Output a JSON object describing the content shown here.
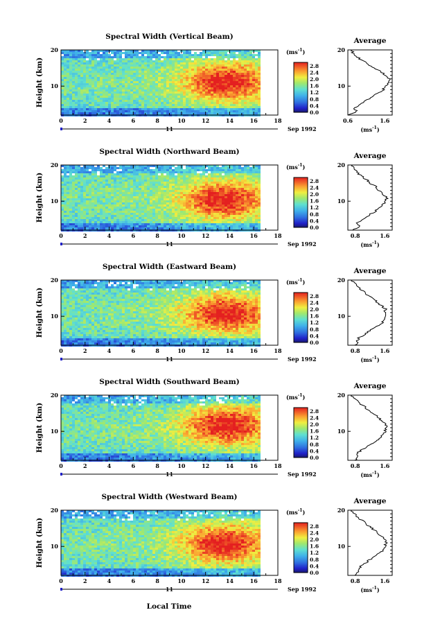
{
  "figure": {
    "xlabel": "Local Time"
  },
  "chart_data": [
    {
      "type": "heatmap",
      "title": "Spectral Width (Vertical Beam)",
      "ylabel": "Height (km)",
      "x_ticks": [
        "0",
        "2",
        "4",
        "6",
        "8",
        "10",
        "12",
        "14",
        "16",
        "18"
      ],
      "y_ticks": [
        "20",
        "10"
      ],
      "xlim": [
        0,
        18
      ],
      "ylim": [
        2,
        20
      ],
      "data_end_x": 16.5,
      "date_label": "11",
      "date_suffix": "Sep 1992",
      "colorbar": {
        "unit_base": "(ms",
        "unit_exp": "-1",
        "unit_close": ")",
        "tick_labels": [
          "2.8",
          "2.4",
          "2.0",
          "1.6",
          "1.2",
          "0.8",
          "0.4",
          "0.0"
        ],
        "range": [
          0,
          3.0
        ]
      },
      "peak": {
        "x": 13.5,
        "y": 11.5
      },
      "profile": {
        "title": "Average",
        "xlim": [
          0.6,
          1.8
        ],
        "x_ticks": [
          "0.6",
          "1.6"
        ],
        "y_ticks": [
          "20",
          "10"
        ],
        "xlabel_base": "(ms",
        "xlabel_exp": "-1",
        "xlabel_close": ")",
        "points": [
          [
            0.62,
            2
          ],
          [
            0.85,
            3
          ],
          [
            0.78,
            4
          ],
          [
            0.95,
            5
          ],
          [
            1.1,
            6
          ],
          [
            1.25,
            7
          ],
          [
            1.4,
            8
          ],
          [
            1.55,
            9
          ],
          [
            1.62,
            10
          ],
          [
            1.7,
            11
          ],
          [
            1.74,
            12
          ],
          [
            1.62,
            13
          ],
          [
            1.48,
            14
          ],
          [
            1.3,
            15
          ],
          [
            1.15,
            16
          ],
          [
            1.0,
            17
          ],
          [
            0.85,
            18
          ],
          [
            0.75,
            19
          ],
          [
            0.7,
            20
          ]
        ]
      }
    },
    {
      "type": "heatmap",
      "title": "Spectral Width (Northward Beam)",
      "ylabel": "Height (km)",
      "x_ticks": [
        "0",
        "2",
        "4",
        "6",
        "8",
        "10",
        "12",
        "14",
        "16",
        "18"
      ],
      "y_ticks": [
        "20",
        "10"
      ],
      "xlim": [
        0,
        18
      ],
      "ylim": [
        2,
        20
      ],
      "data_end_x": 16.5,
      "date_label": "11",
      "date_suffix": "Sep 1992",
      "colorbar": {
        "unit_base": "(ms",
        "unit_exp": "-1",
        "unit_close": ")",
        "tick_labels": [
          "2.8",
          "2.4",
          "2.0",
          "1.6",
          "1.2",
          "0.8",
          "0.4",
          "0.0"
        ],
        "range": [
          0,
          3.0
        ]
      },
      "peak": {
        "x": 13.3,
        "y": 10.5
      },
      "profile": {
        "title": "Average",
        "xlim": [
          0.6,
          1.8
        ],
        "x_ticks": [
          "0.8",
          "1.6"
        ],
        "y_ticks": [
          "20",
          "10"
        ],
        "xlabel_base": "(ms",
        "xlabel_exp": "-1",
        "xlabel_close": ")",
        "points": [
          [
            0.75,
            2
          ],
          [
            0.9,
            3
          ],
          [
            0.85,
            4
          ],
          [
            1.0,
            5
          ],
          [
            1.15,
            6
          ],
          [
            1.3,
            7
          ],
          [
            1.45,
            8
          ],
          [
            1.55,
            9
          ],
          [
            1.62,
            10
          ],
          [
            1.65,
            11
          ],
          [
            1.55,
            12
          ],
          [
            1.45,
            13
          ],
          [
            1.35,
            14
          ],
          [
            1.2,
            15
          ],
          [
            1.1,
            16
          ],
          [
            0.95,
            17
          ],
          [
            0.85,
            18
          ],
          [
            0.75,
            19
          ],
          [
            0.72,
            20
          ]
        ]
      }
    },
    {
      "type": "heatmap",
      "title": "Spectral Width (Eastward Beam)",
      "ylabel": "Height (km)",
      "x_ticks": [
        "0",
        "2",
        "4",
        "6",
        "8",
        "10",
        "12",
        "14",
        "16",
        "18"
      ],
      "y_ticks": [
        "20",
        "10"
      ],
      "xlim": [
        0,
        18
      ],
      "ylim": [
        2,
        20
      ],
      "data_end_x": 16.5,
      "date_label": "11",
      "date_suffix": "Sep 1992",
      "colorbar": {
        "unit_base": "(ms",
        "unit_exp": "-1",
        "unit_close": ")",
        "tick_labels": [
          "2.8",
          "2.4",
          "2.0",
          "1.6",
          "1.2",
          "0.8",
          "0.4",
          "0.0"
        ],
        "range": [
          0,
          3.0
        ]
      },
      "peak": {
        "x": 13.5,
        "y": 11.0
      },
      "profile": {
        "title": "Average",
        "xlim": [
          0.6,
          1.8
        ],
        "x_ticks": [
          "0.8",
          "1.6"
        ],
        "y_ticks": [
          "20",
          "10"
        ],
        "xlabel_base": "(ms",
        "xlabel_exp": "-1",
        "xlabel_close": ")",
        "points": [
          [
            0.8,
            2
          ],
          [
            0.85,
            3
          ],
          [
            0.9,
            4
          ],
          [
            1.05,
            5
          ],
          [
            1.2,
            6
          ],
          [
            1.35,
            7
          ],
          [
            1.5,
            8
          ],
          [
            1.6,
            9
          ],
          [
            1.65,
            10
          ],
          [
            1.6,
            11
          ],
          [
            1.62,
            12
          ],
          [
            1.5,
            13
          ],
          [
            1.38,
            14
          ],
          [
            1.25,
            15
          ],
          [
            1.1,
            16
          ],
          [
            1.0,
            17
          ],
          [
            0.9,
            18
          ],
          [
            0.8,
            19
          ],
          [
            0.7,
            20
          ]
        ]
      }
    },
    {
      "type": "heatmap",
      "title": "Spectral Width (Southward Beam)",
      "ylabel": "Height (km)",
      "x_ticks": [
        "0",
        "2",
        "4",
        "6",
        "8",
        "10",
        "12",
        "14",
        "16",
        "18"
      ],
      "y_ticks": [
        "20",
        "10"
      ],
      "xlim": [
        0,
        18
      ],
      "ylim": [
        2,
        20
      ],
      "data_end_x": 16.5,
      "date_label": "11",
      "date_suffix": "Sep 1992",
      "colorbar": {
        "unit_base": "(ms",
        "unit_exp": "-1",
        "unit_close": ")",
        "tick_labels": [
          "2.8",
          "2.4",
          "2.0",
          "1.6",
          "1.2",
          "0.8",
          "0.4",
          "0.0"
        ],
        "range": [
          0,
          3.0
        ]
      },
      "peak": {
        "x": 13.5,
        "y": 12.0
      },
      "profile": {
        "title": "Average",
        "xlim": [
          0.6,
          1.8
        ],
        "x_ticks": [
          "0.8",
          "1.6"
        ],
        "y_ticks": [
          "20",
          "10"
        ],
        "xlabel_base": "(ms",
        "xlabel_exp": "-1",
        "xlabel_close": ")",
        "points": [
          [
            0.8,
            2
          ],
          [
            0.9,
            3
          ],
          [
            0.85,
            4
          ],
          [
            1.0,
            5
          ],
          [
            1.15,
            6
          ],
          [
            1.3,
            7
          ],
          [
            1.45,
            8
          ],
          [
            1.55,
            9
          ],
          [
            1.6,
            10
          ],
          [
            1.64,
            11
          ],
          [
            1.62,
            12
          ],
          [
            1.52,
            13
          ],
          [
            1.4,
            14
          ],
          [
            1.28,
            15
          ],
          [
            1.15,
            16
          ],
          [
            1.02,
            17
          ],
          [
            0.9,
            18
          ],
          [
            0.78,
            19
          ],
          [
            0.7,
            20
          ]
        ]
      }
    },
    {
      "type": "heatmap",
      "title": "Spectral Width (Westward Beam)",
      "ylabel": "Height (km)",
      "x_ticks": [
        "0",
        "2",
        "4",
        "6",
        "8",
        "10",
        "12",
        "14",
        "16",
        "18"
      ],
      "y_ticks": [
        "20",
        "10"
      ],
      "xlim": [
        0,
        18
      ],
      "ylim": [
        2,
        20
      ],
      "data_end_x": 16.5,
      "date_label": "11",
      "date_suffix": "Sep 1992",
      "colorbar": {
        "unit_base": "(ms",
        "unit_exp": "-1",
        "unit_close": ")",
        "tick_labels": [
          "2.8",
          "2.4",
          "2.0",
          "1.6",
          "1.2",
          "0.8",
          "0.4",
          "0.0"
        ],
        "range": [
          0,
          3.0
        ]
      },
      "peak": {
        "x": 13.3,
        "y": 11.0
      },
      "profile": {
        "title": "Average",
        "xlim": [
          0.6,
          1.8
        ],
        "x_ticks": [
          "0.8",
          "1.6"
        ],
        "y_ticks": [
          "20",
          "10"
        ],
        "xlabel_base": "(ms",
        "xlabel_exp": "-1",
        "xlabel_close": ")",
        "points": [
          [
            0.8,
            2
          ],
          [
            0.88,
            3
          ],
          [
            0.9,
            4
          ],
          [
            1.02,
            5
          ],
          [
            1.15,
            6
          ],
          [
            1.3,
            7
          ],
          [
            1.45,
            8
          ],
          [
            1.55,
            9
          ],
          [
            1.6,
            10
          ],
          [
            1.63,
            11
          ],
          [
            1.6,
            12
          ],
          [
            1.5,
            13
          ],
          [
            1.38,
            14
          ],
          [
            1.25,
            15
          ],
          [
            1.12,
            16
          ],
          [
            1.0,
            17
          ],
          [
            0.88,
            18
          ],
          [
            0.78,
            19
          ],
          [
            0.7,
            20
          ]
        ]
      }
    }
  ]
}
